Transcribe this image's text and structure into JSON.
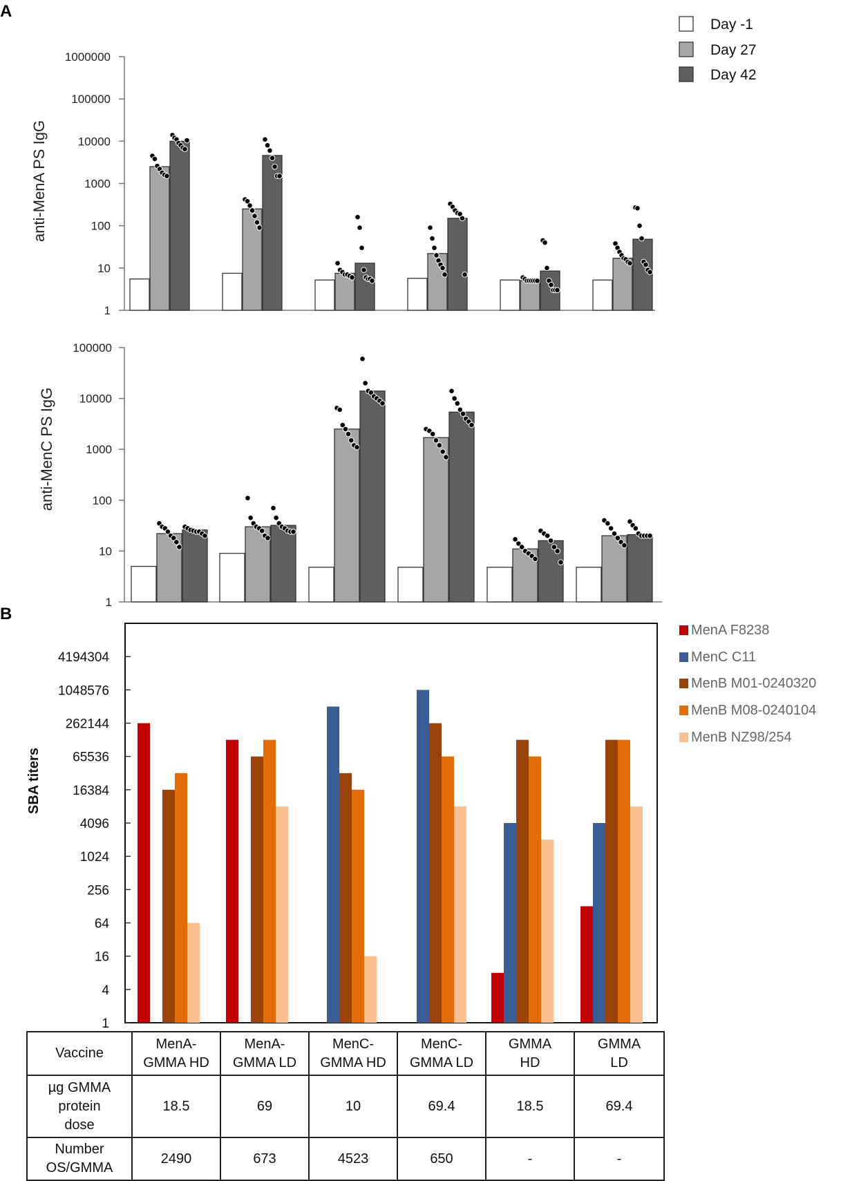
{
  "panels": {
    "a_label": "A",
    "b_label": "B"
  },
  "colors": {
    "day_m1": "#ffffff",
    "day_27": "#a6a6a6",
    "day_42": "#5f5f5f",
    "mena": "#c00000",
    "menc": "#3a5d96",
    "menb_m01": "#9a430a",
    "menb_m08": "#e36c0a",
    "menb_nz": "#fac090"
  },
  "chart_data": [
    {
      "id": "menA_igg",
      "type": "bar",
      "scale": "log10",
      "ylabel": "anti-MenA PS IgG",
      "ylim": [
        1,
        1000000
      ],
      "yticks": [
        "1",
        "10",
        "100",
        "1000",
        "10000",
        "100000",
        "1000000"
      ],
      "legend_position": "top-right",
      "series": [
        {
          "name": "Day -1",
          "values": [
            5.5,
            7.5,
            5.2,
            5.7,
            5.2,
            5.2
          ]
        },
        {
          "name": "Day 27",
          "values": [
            2500,
            250,
            7.5,
            22,
            5,
            17
          ]
        },
        {
          "name": "Day 42",
          "values": [
            10000,
            4600,
            13,
            150,
            8.5,
            48
          ]
        }
      ],
      "points": [
        [
          [],
          [
            4500,
            3800,
            2600,
            2200,
            1800,
            1600,
            1500
          ],
          [
            14000,
            12000,
            11000,
            9000,
            8000,
            7000,
            6500,
            10500
          ]
        ],
        [
          [],
          [
            420,
            380,
            300,
            230,
            170,
            120,
            90
          ],
          [
            11000,
            8000,
            6000,
            4000,
            2500,
            1500,
            1500
          ]
        ],
        [
          [],
          [
            13,
            9,
            8,
            7,
            7,
            6.5,
            6
          ],
          [
            160,
            90,
            30,
            9,
            6,
            5.5,
            5.5,
            5
          ]
        ],
        [
          [],
          [
            90,
            50,
            30,
            20,
            15,
            12,
            10,
            7
          ],
          [
            330,
            280,
            230,
            200,
            190,
            150,
            7
          ]
        ],
        [
          [],
          [
            6,
            5.5,
            5,
            5,
            5,
            5,
            5,
            5
          ],
          [
            45,
            40,
            10,
            5,
            4,
            3,
            3,
            3
          ]
        ],
        [
          [],
          [
            38,
            30,
            24,
            20,
            17,
            16,
            14,
            13
          ],
          [
            270,
            260,
            100,
            50,
            14,
            12,
            9,
            8
          ]
        ]
      ]
    },
    {
      "id": "menC_igg",
      "type": "bar",
      "scale": "log10",
      "ylabel": "anti-MenC PS IgG",
      "ylim": [
        1,
        100000
      ],
      "yticks": [
        "1",
        "10",
        "100",
        "1000",
        "10000",
        "100000"
      ],
      "series": [
        {
          "name": "Day -1",
          "values": [
            5,
            9,
            4.8,
            4.8,
            4.8,
            4.8
          ]
        },
        {
          "name": "Day 27",
          "values": [
            22,
            30,
            2500,
            1700,
            11,
            20
          ]
        },
        {
          "name": "Day 42",
          "values": [
            26,
            32,
            14000,
            5400,
            16,
            21
          ]
        }
      ],
      "points": [
        [
          [],
          [
            35,
            30,
            28,
            24,
            20,
            18,
            15,
            12
          ],
          [
            30,
            28,
            26,
            25,
            24,
            24,
            22,
            20
          ]
        ],
        [
          [],
          [
            110,
            45,
            35,
            30,
            28,
            25,
            20,
            18
          ],
          [
            70,
            45,
            35,
            30,
            28,
            25,
            24,
            24
          ]
        ],
        [
          [],
          [
            6500,
            6000,
            3000,
            2500,
            2000,
            1500,
            1200,
            1100
          ],
          [
            60000,
            20000,
            14000,
            13000,
            11000,
            10000,
            9000,
            8000
          ]
        ],
        [
          [],
          [
            2500,
            2300,
            2000,
            1500,
            1200,
            900,
            700
          ],
          [
            14000,
            10000,
            8000,
            6000,
            5000,
            4000,
            3500,
            3000
          ]
        ],
        [
          [],
          [
            17,
            14,
            12,
            10,
            9,
            8,
            7
          ],
          [
            25,
            22,
            20,
            16,
            12,
            10,
            6
          ]
        ],
        [
          [],
          [
            40,
            35,
            28,
            22,
            18,
            15,
            13
          ],
          [
            38,
            32,
            28,
            22,
            20,
            20,
            20,
            20
          ]
        ]
      ]
    },
    {
      "id": "sba_titers",
      "type": "bar",
      "scale": "log2",
      "ylabel": "SBA titers",
      "ylim": [
        1,
        16777216
      ],
      "yticks": [
        "1",
        "4",
        "16",
        "64",
        "256",
        "1024",
        "4096",
        "16384",
        "65536",
        "262144",
        "1048576",
        "4194304"
      ],
      "legend_position": "right",
      "categories": [
        "MenA-GMMA HD",
        "MenA-GMMA LD",
        "MenC-GMMA HD",
        "MenC-GMMA LD",
        "GMMA HD",
        "GMMA LD"
      ],
      "series": [
        {
          "name": "MenA F8238",
          "values": [
            262144,
            131072,
            null,
            null,
            8,
            128
          ]
        },
        {
          "name": "MenC C11",
          "values": [
            null,
            null,
            524288,
            1048576,
            4096,
            4096
          ]
        },
        {
          "name": "MenB M01-0240320",
          "values": [
            16384,
            65536,
            32768,
            262144,
            131072,
            131072
          ]
        },
        {
          "name": "MenB M08-0240104",
          "values": [
            32768,
            131072,
            16384,
            65536,
            65536,
            131072
          ]
        },
        {
          "name": "MenB NZ98/254",
          "values": [
            64,
            8192,
            16,
            8192,
            2048,
            8192
          ]
        }
      ]
    }
  ],
  "table": {
    "header_label": "Vaccine",
    "columns": [
      {
        "line1": "MenA-",
        "line2": "GMMA HD"
      },
      {
        "line1": "MenA-",
        "line2": "GMMA LD"
      },
      {
        "line1": "MenC-",
        "line2": "GMMA HD"
      },
      {
        "line1": "MenC-",
        "line2": "GMMA LD"
      },
      {
        "line1": "GMMA",
        "line2": "HD"
      },
      {
        "line1": "GMMA",
        "line2": "LD"
      }
    ],
    "dose_label": {
      "line1": "µg GMMA",
      "line2": "protein",
      "line3": "dose"
    },
    "dose_values": [
      "18.5",
      "69",
      "10",
      "69.4",
      "18.5",
      "69.4"
    ],
    "os_label": {
      "line1": "Number",
      "line2": "OS/GMMA"
    },
    "os_values": [
      "2490",
      "673",
      "4523",
      "650",
      "-",
      "-"
    ]
  }
}
